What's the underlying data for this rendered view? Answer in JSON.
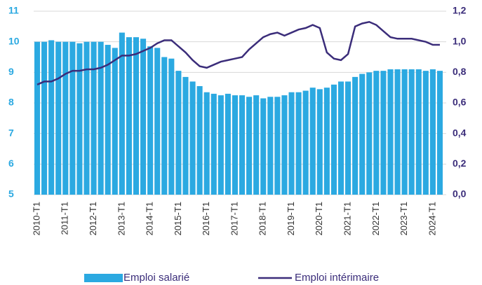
{
  "chart_data": {
    "type": "bar-line",
    "categories": [
      "2010-T1",
      null,
      null,
      null,
      "2011-T1",
      null,
      null,
      null,
      "2012-T1",
      null,
      null,
      null,
      "2013-T1",
      null,
      null,
      null,
      "2014-T1",
      null,
      null,
      null,
      "2015-T1",
      null,
      null,
      null,
      "2016-T1",
      null,
      null,
      null,
      "2017-T1",
      null,
      null,
      null,
      "2018-T1",
      null,
      null,
      null,
      "2019-T1",
      null,
      null,
      null,
      "2020-T1",
      null,
      null,
      null,
      "2021-T1",
      null,
      null,
      null,
      "2022-T1",
      null,
      null,
      null,
      "2023-T1",
      null,
      null,
      null,
      "2024-T1",
      null
    ],
    "series": [
      {
        "name": "Emploi salarié",
        "type": "bar",
        "color": "#2ba9e1",
        "values": [
          10.0,
          10.0,
          10.05,
          10.0,
          10.0,
          10.0,
          9.95,
          10.0,
          10.0,
          10.0,
          9.9,
          9.8,
          10.3,
          10.15,
          10.15,
          10.1,
          9.85,
          9.8,
          9.5,
          9.45,
          9.05,
          8.85,
          8.7,
          8.55,
          8.35,
          8.3,
          8.25,
          8.3,
          8.25,
          8.25,
          8.2,
          8.25,
          8.15,
          8.2,
          8.2,
          8.25,
          8.35,
          8.35,
          8.4,
          8.5,
          8.45,
          8.5,
          8.6,
          8.7,
          8.7,
          8.85,
          8.95,
          9.0,
          9.05,
          9.05,
          9.1,
          9.1,
          9.1,
          9.1,
          9.1,
          9.05,
          9.1,
          9.05
        ]
      },
      {
        "name": "Emploi intérimaire",
        "type": "line",
        "axis": "y2",
        "color": "#3b2d7a",
        "values": [
          0.72,
          0.74,
          0.74,
          0.76,
          0.79,
          0.81,
          0.81,
          0.82,
          0.82,
          0.83,
          0.85,
          0.88,
          0.91,
          0.91,
          0.92,
          0.94,
          0.96,
          0.99,
          1.01,
          1.01,
          0.97,
          0.93,
          0.88,
          0.84,
          0.83,
          0.85,
          0.87,
          0.88,
          0.89,
          0.9,
          0.95,
          0.99,
          1.03,
          1.05,
          1.06,
          1.04,
          1.06,
          1.08,
          1.09,
          1.11,
          1.09,
          0.93,
          0.89,
          0.88,
          0.92,
          1.1,
          1.12,
          1.13,
          1.11,
          1.07,
          1.03,
          1.02,
          1.02,
          1.02,
          1.01,
          1.0,
          0.98,
          0.98
        ]
      }
    ],
    "ylim": [
      5,
      11
    ],
    "yticks": [
      5,
      6,
      7,
      8,
      9,
      10,
      11
    ],
    "y2lim": [
      0,
      1.2
    ],
    "y2ticks": [
      {
        "value": 0,
        "label": "0,0"
      },
      {
        "value": 0.2,
        "label": "0,2"
      },
      {
        "value": 0.4,
        "label": "0,4"
      },
      {
        "value": 0.6,
        "label": "0,6"
      },
      {
        "value": 0.8,
        "label": "0,8"
      },
      {
        "value": 1.0,
        "label": "1,0"
      },
      {
        "value": 1.2,
        "label": "1,2"
      }
    ],
    "grid": true,
    "legend": "bottom"
  }
}
